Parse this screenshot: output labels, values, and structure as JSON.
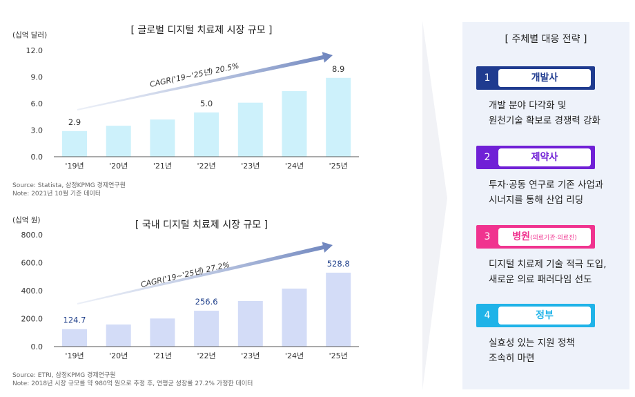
{
  "chart_data": [
    {
      "type": "bar",
      "title": "[ 글로벌 디지털 치료제 시장 규모 ]",
      "unit_label": "(십억  달러)",
      "categories": [
        "'19년",
        "'20년",
        "'21년",
        "'22년",
        "'23년",
        "'24년",
        "'25년"
      ],
      "values": [
        2.9,
        3.5,
        4.2,
        5.0,
        6.1,
        7.4,
        8.9
      ],
      "data_labels": [
        "2.9",
        "",
        "",
        "5.0",
        "",
        "",
        "8.9"
      ],
      "yticks": [
        "0.0",
        "3.0",
        "6.0",
        "9.0",
        "12.0"
      ],
      "ylim": [
        0,
        12
      ],
      "bar_color": "#cdf1fb",
      "label_color": "#333333",
      "cagr": "CAGR('19~'25년) 20.5%",
      "source": [
        "Source: Statista, 삼정KPMG 경제연구원",
        "Note: 2021년 10월 기준 데이터"
      ]
    },
    {
      "type": "bar",
      "title": "[ 국내 디지털 치료제 시장 규모 ]",
      "unit_label": "(십억  원)",
      "categories": [
        "'19년",
        "'20년",
        "'21년",
        "'22년",
        "'23년",
        "'24년",
        "'25년"
      ],
      "values": [
        124.7,
        158,
        201,
        256.6,
        326,
        415,
        528.8
      ],
      "data_labels": [
        "124.7",
        "",
        "",
        "256.6",
        "",
        "",
        "528.8"
      ],
      "yticks": [
        "0.0",
        "200.0",
        "400.0",
        "600.0",
        "800.0"
      ],
      "ylim": [
        0,
        800
      ],
      "bar_color": "#d3dcf7",
      "label_color": "#1f3f8a",
      "cagr": "CAGR('19~'25년) 27.2%",
      "source": [
        "Source: ETRI, 삼정KPMG 경제연구원",
        "Note: 2018년 시장 규모를 약 980억 원으로 추정 후, 연평균 성장률 27.2% 가정한 데이터"
      ]
    }
  ],
  "panel": {
    "title": "[ 주체별 대응 전략 ]",
    "items": [
      {
        "num": "1",
        "label": "개발사",
        "sub": "",
        "color": "#1f3b8f",
        "desc1": "개발 분야 다각화 및",
        "desc2": "원천기술 확보로 경쟁력 강화"
      },
      {
        "num": "2",
        "label": "제약사",
        "sub": "",
        "color": "#7020d6",
        "desc1": "투자·공동 연구로 기존 사업과",
        "desc2": "시너지를 통해 산업 리딩"
      },
      {
        "num": "3",
        "label": "병원",
        "sub": "(의료기관·의료진)",
        "color": "#f0338f",
        "desc1": "디지털 치료제 기술 적극 도입,",
        "desc2": "새로운 의료 패러다임 선도"
      },
      {
        "num": "4",
        "label": "정부",
        "sub": "",
        "color": "#1fb3e8",
        "desc1": "실효성 있는 지원 정책",
        "desc2": "조속히 마련"
      }
    ]
  }
}
